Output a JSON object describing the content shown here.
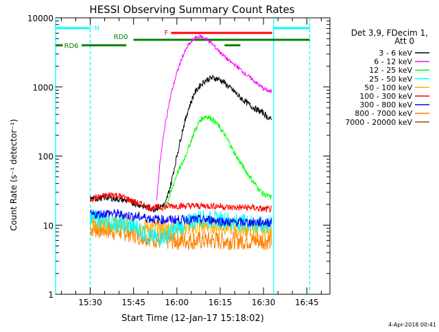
{
  "chart_data": {
    "type": "line",
    "title": "HESSI Observing Summary Count Rates",
    "xlabel": "Start Time (12-Jan-17 15:18:02)",
    "ylabel": "Count Rate (s⁻¹ detector⁻¹)",
    "footer": "4-Apr-2018 00:41",
    "x_unit": "minutes after 15:18:02",
    "xlim": [
      0,
      95
    ],
    "ylim": [
      1,
      10000
    ],
    "y_scale": "log",
    "x_ticks": [
      {
        "label": "15:30",
        "value": 12
      },
      {
        "label": "15:45",
        "value": 27
      },
      {
        "label": "16:00",
        "value": 42
      },
      {
        "label": "16:15",
        "value": 57
      },
      {
        "label": "16:30",
        "value": 72
      },
      {
        "label": "16:45",
        "value": 87
      }
    ],
    "y_ticks": [
      {
        "label": "1",
        "value": 1
      },
      {
        "label": "10",
        "value": 10
      },
      {
        "label": "100",
        "value": 100
      },
      {
        "label": "1000",
        "value": 1000
      },
      {
        "label": "10000",
        "value": 10000
      }
    ],
    "legend_header": [
      "Det 3,9, FDecim 1,",
      "Att 0"
    ],
    "legend_position": "right",
    "series": [
      {
        "name": "3 - 6 keV",
        "color": "#000000",
        "x": [
          12,
          18,
          24,
          30,
          34,
          38,
          40,
          42,
          44,
          46,
          48,
          50,
          52,
          54,
          56,
          58,
          60,
          62,
          64,
          66,
          68,
          70,
          72,
          73,
          74.8
        ],
        "y": [
          24,
          25,
          23,
          19,
          17,
          20,
          40,
          100,
          240,
          480,
          800,
          1050,
          1250,
          1350,
          1320,
          1200,
          1000,
          850,
          700,
          600,
          520,
          460,
          420,
          380,
          330
        ]
      },
      {
        "name": "6 - 12 keV",
        "color": "#ff00ff",
        "x": [
          35,
          36,
          37,
          38,
          40,
          42,
          44,
          46,
          48,
          50,
          52,
          54,
          56,
          58,
          60,
          62,
          64,
          66,
          68,
          70,
          72,
          73,
          74.8
        ],
        "y": [
          24,
          70,
          150,
          300,
          800,
          1600,
          2800,
          4000,
          5000,
          5400,
          5000,
          4300,
          3500,
          2900,
          2400,
          2100,
          1800,
          1500,
          1300,
          1100,
          950,
          900,
          850
        ]
      },
      {
        "name": "12 - 25 keV",
        "color": "#00ff00",
        "x": [
          38,
          40,
          42,
          44,
          46,
          48,
          50,
          52,
          54,
          56,
          58,
          60,
          62,
          64,
          66,
          68,
          70,
          72,
          74.8
        ],
        "y": [
          18,
          30,
          55,
          80,
          130,
          220,
          330,
          380,
          350,
          290,
          220,
          160,
          110,
          80,
          60,
          45,
          35,
          28,
          25
        ]
      },
      {
        "name": "25 - 50 keV",
        "color": "#00ffff",
        "x": [
          12,
          16,
          20,
          24,
          28,
          30,
          32,
          35,
          38,
          42,
          46,
          50,
          54,
          58,
          62,
          66,
          70,
          74.8
        ],
        "y": [
          13,
          12,
          11,
          10,
          9.5,
          8,
          7,
          6.5,
          7,
          9,
          11,
          13,
          12,
          12,
          11,
          11,
          10,
          10
        ]
      },
      {
        "name": "50 - 100 keV",
        "color": "#ffaa00",
        "x": [
          12,
          18,
          24,
          30,
          36,
          42,
          48,
          54,
          60,
          66,
          72,
          74.8
        ],
        "y": [
          11,
          10.5,
          10,
          9.5,
          9,
          9,
          9.5,
          10,
          9.5,
          9,
          9,
          9
        ]
      },
      {
        "name": "100 - 300 keV",
        "color": "#ff0000",
        "x": [
          12,
          16,
          20,
          24,
          28,
          30,
          32,
          36,
          40,
          44,
          48,
          52,
          56,
          60,
          64,
          68,
          72,
          74.8
        ],
        "y": [
          24,
          26,
          28,
          25,
          21,
          20,
          18,
          18,
          19,
          19,
          19,
          19,
          19,
          18,
          18,
          18,
          17,
          17
        ]
      },
      {
        "name": "300 - 800 keV",
        "color": "#0000ff",
        "x": [
          12,
          18,
          24,
          30,
          36,
          42,
          48,
          54,
          60,
          66,
          72,
          74.8
        ],
        "y": [
          14,
          15,
          14,
          13,
          12,
          12,
          12,
          12,
          11,
          11,
          11,
          11
        ]
      },
      {
        "name": "800 - 7000 keV",
        "color": "#ff8000",
        "x": [
          12,
          18,
          24,
          30,
          34,
          36,
          42,
          48,
          54,
          60,
          66,
          72,
          74.8
        ],
        "y": [
          9,
          8.5,
          8,
          7,
          6.5,
          6,
          6,
          6,
          6,
          6,
          6,
          6,
          6
        ]
      },
      {
        "name": "7000 - 20000 keV",
        "color": "#a05000",
        "x": [],
        "y": []
      }
    ],
    "annotations": [
      {
        "label": "N",
        "color": "#00ffff",
        "segments": [
          [
            0,
            12
          ],
          [
            75.5,
            88
          ]
        ],
        "level": 1
      },
      {
        "label": "F",
        "color": "#ff0000",
        "segments": [
          [
            40,
            75
          ]
        ],
        "level": 2
      },
      {
        "label": "RD0",
        "color": "#007f00",
        "segments": [
          [
            27,
            88
          ]
        ],
        "level": 3
      },
      {
        "label": "RD6",
        "color": "#007f00",
        "segments": [
          [
            0,
            2.5
          ],
          [
            9,
            24.5
          ],
          [
            58.5,
            64
          ]
        ],
        "level": 4
      }
    ],
    "vertical_lines": [
      {
        "x": 0,
        "color": "#00ffff",
        "style": "solid"
      },
      {
        "x": 12,
        "color": "#00ffff",
        "style": "dashed"
      },
      {
        "x": 75.5,
        "color": "#00ffff",
        "style": "solid"
      },
      {
        "x": 88,
        "color": "#00ffff",
        "style": "dashed"
      }
    ]
  }
}
